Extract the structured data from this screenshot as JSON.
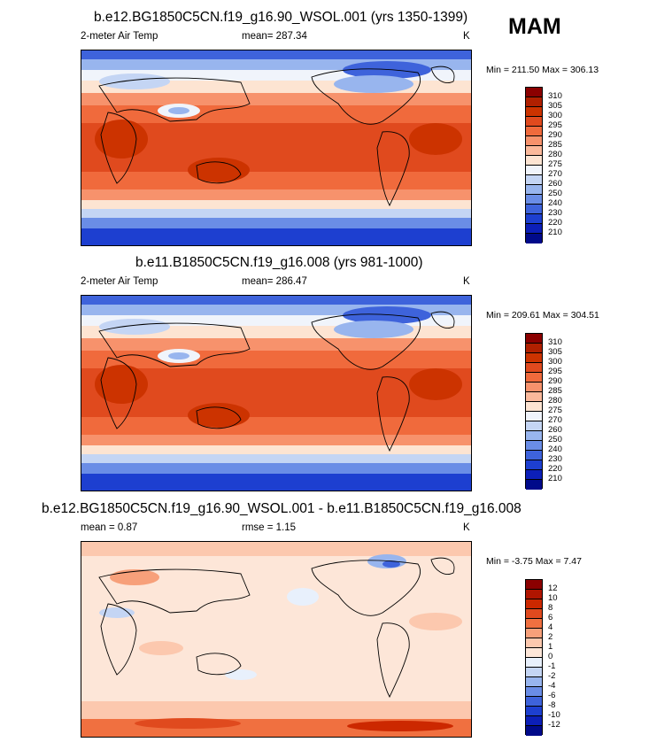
{
  "season": "MAM",
  "panels": [
    {
      "title": "b.e12.BG1850C5CN.f19_g16.90_WSOL.001 (yrs 1350-1399)",
      "variable": "2-meter Air Temp",
      "stat": "mean= 287.34",
      "units": "K",
      "minmax": "Min = 211.50 Max = 306.13",
      "levels": [
        "310",
        "305",
        "300",
        "295",
        "290",
        "285",
        "280",
        "275",
        "270",
        "260",
        "250",
        "240",
        "230",
        "220",
        "210"
      ]
    },
    {
      "title": "b.e11.B1850C5CN.f19_g16.008 (yrs 981-1000)",
      "variable": "2-meter Air Temp",
      "stat": "mean= 286.47",
      "units": "K",
      "minmax": "Min = 209.61 Max = 304.51",
      "levels": [
        "310",
        "305",
        "300",
        "295",
        "290",
        "285",
        "280",
        "275",
        "270",
        "260",
        "250",
        "240",
        "230",
        "220",
        "210"
      ]
    },
    {
      "title": "b.e12.BG1850C5CN.f19_g16.90_WSOL.001 - b.e11.B1850C5CN.f19_g16.008",
      "variable": "mean =   0.87",
      "stat": "rmse =   1.15",
      "units": "K",
      "minmax": "Min =  -3.75 Max =   7.47",
      "levels": [
        "12",
        "10",
        "8",
        "6",
        "4",
        "2",
        "1",
        "0",
        "-1",
        "-2",
        "-4",
        "-6",
        "-8",
        "-10",
        "-12"
      ]
    }
  ],
  "colors": {
    "abs_bar": [
      "#8b0000",
      "#b02000",
      "#cc3300",
      "#e04a1e",
      "#f06a3c",
      "#f7926c",
      "#fbb99b",
      "#fde4d2",
      "#f0f4fb",
      "#c4d5f4",
      "#98b5ee",
      "#6a8de6",
      "#3e63db",
      "#1d3fd0",
      "#0c1fb8",
      "#000a8a"
    ],
    "diff_bar": [
      "#8b0000",
      "#b01500",
      "#cc2800",
      "#e04a1e",
      "#f07040",
      "#f7a07a",
      "#fcc8ae",
      "#fde6d8",
      "#e8f0fc",
      "#c4d5f4",
      "#98b5ee",
      "#6a8de6",
      "#3e63db",
      "#1d3fd0",
      "#0c1fb8",
      "#000a8a"
    ]
  }
}
